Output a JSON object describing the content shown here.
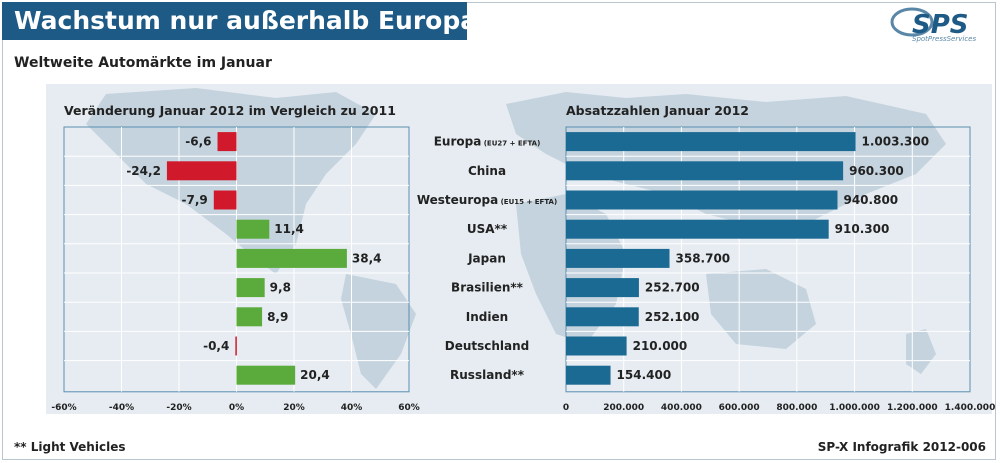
{
  "header": {
    "title": "Wachstum nur außerhalb Europas",
    "subtitle": "Weltweite Automärkte im Januar"
  },
  "logo": {
    "text": "SPS",
    "subtext": "SpotPressServices"
  },
  "footer": {
    "footnote": "** Light Vehicles",
    "credit": "SP-X Infografik 2012-006"
  },
  "colors": {
    "title_bg": "#1d5a85",
    "negative": "#d0192b",
    "positive": "#5aab3c",
    "sales": "#1b6a93",
    "map": "#c4d3de"
  },
  "chart_data": [
    {
      "type": "bar",
      "orientation": "horizontal",
      "title": "Veränderung Januar 2012 im Vergleich zu 2011",
      "categories": [
        "Europa",
        "China",
        "Westeuropa",
        "USA**",
        "Japan",
        "Brasilien**",
        "Indien",
        "Deutschland",
        "Russland**"
      ],
      "category_notes": [
        "(EU27 + EFTA)",
        "",
        "(EU15 + EFTA)",
        "",
        "",
        "",
        "",
        "",
        ""
      ],
      "values": [
        -6.6,
        -24.2,
        -7.9,
        11.4,
        38.4,
        9.8,
        8.9,
        -0.4,
        20.4
      ],
      "value_labels": [
        "-6,6",
        "-24,2",
        "-7,9",
        "11,4",
        "38,4",
        "9,8",
        "8,9",
        "-0,4",
        "20,4"
      ],
      "xlim": [
        -60,
        60
      ],
      "xticks": [
        -60,
        -40,
        -20,
        0,
        20,
        40,
        60
      ],
      "xtick_labels": [
        "-60%",
        "-40%",
        "-20%",
        "0%",
        "20%",
        "40%",
        "60%"
      ],
      "grid": true
    },
    {
      "type": "bar",
      "orientation": "horizontal",
      "title": "Absatzzahlen Januar 2012",
      "categories": [
        "Europa",
        "China",
        "Westeuropa",
        "USA**",
        "Japan",
        "Brasilien**",
        "Indien",
        "Deutschland",
        "Russland**"
      ],
      "values": [
        1003300,
        960300,
        940800,
        910300,
        358700,
        252700,
        252100,
        210000,
        154400
      ],
      "value_labels": [
        "1.003.300",
        "960.300",
        "940.800",
        "910.300",
        "358.700",
        "252.700",
        "252.100",
        "210.000",
        "154.400"
      ],
      "xlim": [
        0,
        1400000
      ],
      "xticks": [
        0,
        200000,
        400000,
        600000,
        800000,
        1000000,
        1200000,
        1400000
      ],
      "xtick_labels": [
        "0",
        "200.000",
        "400.000",
        "600.000",
        "800.000",
        "1.000.000",
        "1.200.000",
        "1.400.000"
      ],
      "grid": true
    }
  ]
}
